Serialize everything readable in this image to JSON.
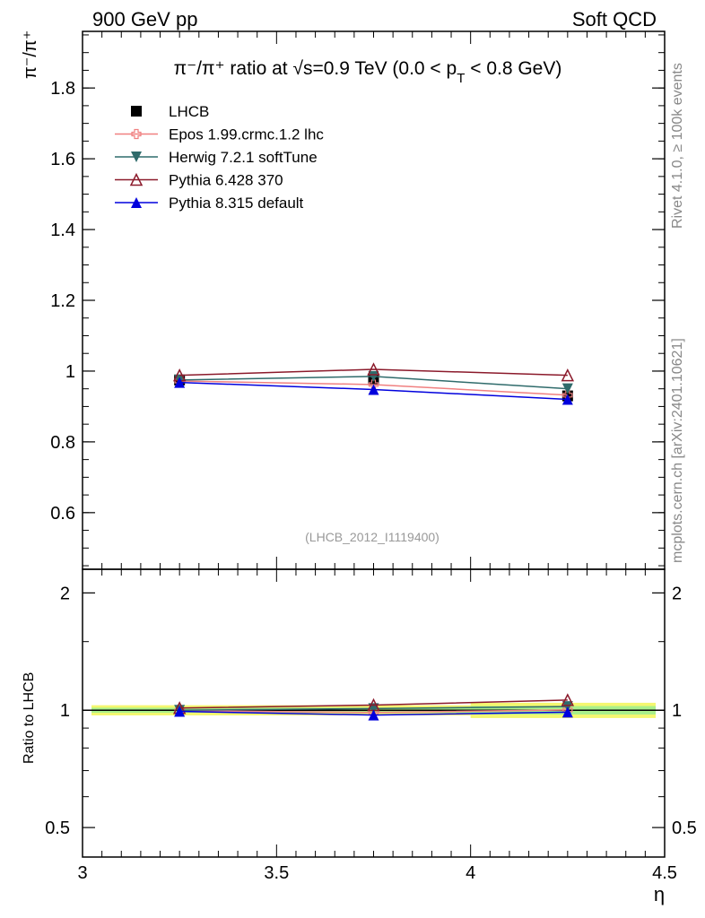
{
  "header": {
    "left": "900 GeV pp",
    "right": "Soft QCD"
  },
  "side_labels": {
    "rivet": "Rivet 4.1.0, ≥ 100k events",
    "mcplots": "mcplots.cern.ch [arXiv:2401.10621]"
  },
  "chart_data": [
    {
      "type": "line",
      "panel": "main",
      "title_prefix": "π⁻/π⁺ ratio at √s=0.9 TeV (0.0 < p",
      "title_sub": "T",
      "title_suffix": " < 0.8 GeV)",
      "ylabel": "π⁻/π⁺",
      "xlabel": "η",
      "xlim": [
        3.0,
        4.5
      ],
      "ylim": [
        0.44,
        1.96
      ],
      "x_ticks": [
        "3",
        "3.5",
        "4",
        "4.5"
      ],
      "y_ticks": [
        "0.6",
        "0.8",
        "1",
        "1.2",
        "1.4",
        "1.6",
        "1.8"
      ],
      "x": [
        3.25,
        3.75,
        4.25
      ],
      "series": [
        {
          "name": "LHCB",
          "color": "#000000",
          "marker": "square",
          "values": [
            0.975,
            0.975,
            0.93
          ]
        },
        {
          "name": "Epos 1.99.crmc.1.2 lhc",
          "color": "#f08080",
          "marker": "open-cross",
          "values": [
            0.972,
            0.962,
            0.932
          ]
        },
        {
          "name": "Herwig 7.2.1 softTune",
          "color": "#2f6b6b",
          "marker": "triangle-down",
          "values": [
            0.975,
            0.985,
            0.95
          ]
        },
        {
          "name": "Pythia 6.428 370",
          "color": "#8b1a2b",
          "marker": "open-triangle-up",
          "values": [
            0.988,
            1.005,
            0.988
          ]
        },
        {
          "name": "Pythia 8.315 default",
          "color": "#0000dd",
          "marker": "triangle-up",
          "values": [
            0.968,
            0.948,
            0.92
          ]
        }
      ],
      "watermark": "(LHCB_2012_I1119400)"
    },
    {
      "type": "line",
      "panel": "ratio",
      "ylabel": "Ratio to LHCB",
      "xlim": [
        3.0,
        4.5
      ],
      "ylim": [
        0.42,
        2.3
      ],
      "y_ticks": [
        "0.5",
        "1",
        "2"
      ],
      "x": [
        3.25,
        3.75,
        4.25
      ],
      "series": [
        {
          "name": "LHCB",
          "color": "#000000",
          "marker": "none",
          "values": [
            1.0,
            1.0,
            1.0
          ]
        },
        {
          "name": "Epos 1.99.crmc.1.2 lhc",
          "color": "#f08080",
          "marker": "open-cross",
          "values": [
            0.997,
            0.987,
            1.002
          ]
        },
        {
          "name": "Herwig 7.2.1 softTune",
          "color": "#2f6b6b",
          "marker": "triangle-down",
          "values": [
            1.0,
            1.01,
            1.022
          ]
        },
        {
          "name": "Pythia 6.428 370",
          "color": "#8b1a2b",
          "marker": "open-triangle-up",
          "values": [
            1.013,
            1.031,
            1.062
          ]
        },
        {
          "name": "Pythia 8.315 default",
          "color": "#0000dd",
          "marker": "triangle-up",
          "values": [
            0.993,
            0.972,
            0.989
          ]
        }
      ],
      "bands": [
        {
          "x_range": [
            3.0,
            4.0
          ],
          "yellow": [
            0.97,
            1.03
          ],
          "green": [
            0.985,
            1.015
          ]
        },
        {
          "x_range": [
            4.0,
            4.5
          ],
          "yellow": [
            0.955,
            1.045
          ],
          "green": [
            0.975,
            1.025
          ]
        }
      ]
    }
  ]
}
